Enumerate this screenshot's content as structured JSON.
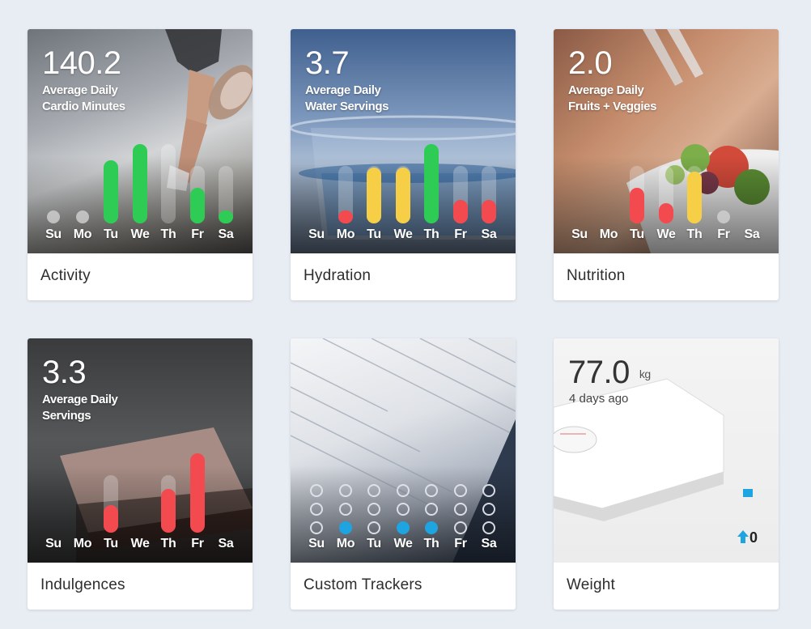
{
  "colors": {
    "green": "#2ecc55",
    "yellow": "#f7cf47",
    "red": "#f24a4e",
    "blue": "#1ea4e0",
    "inactive": "#d9d9d9"
  },
  "days": [
    "Su",
    "Mo",
    "Tu",
    "We",
    "Th",
    "Fr",
    "Sa"
  ],
  "activity": {
    "label": "Activity",
    "value": "140.2",
    "subtitle_line1": "Average Daily",
    "subtitle_line2": "Cardio Minutes",
    "bars": [
      {
        "day": "Su",
        "level": 0,
        "color": "inactive"
      },
      {
        "day": "Mo",
        "level": 0,
        "color": "inactive"
      },
      {
        "day": "Tu",
        "level": 0.8,
        "color": "green"
      },
      {
        "day": "We",
        "level": 1.0,
        "color": "green"
      },
      {
        "day": "Th",
        "level": 0,
        "color": "track"
      },
      {
        "day": "Fr",
        "level": 0.45,
        "color": "green"
      },
      {
        "day": "Sa",
        "level": 0.15,
        "color": "green"
      }
    ]
  },
  "hydration": {
    "label": "Hydration",
    "value": "3.7",
    "subtitle_line1": "Average Daily",
    "subtitle_line2": "Water Servings",
    "bars": [
      {
        "day": "Su",
        "level": 0,
        "color": "none"
      },
      {
        "day": "Mo",
        "level": 0.1,
        "color": "red"
      },
      {
        "day": "Tu",
        "level": 0.7,
        "color": "yellow"
      },
      {
        "day": "We",
        "level": 0.7,
        "color": "yellow"
      },
      {
        "day": "Th",
        "level": 1.0,
        "color": "green"
      },
      {
        "day": "Fr",
        "level": 0.3,
        "color": "red"
      },
      {
        "day": "Sa",
        "level": 0.3,
        "color": "red"
      }
    ]
  },
  "nutrition": {
    "label": "Nutrition",
    "value": "2.0",
    "subtitle_line1": "Average Daily",
    "subtitle_line2": "Fruits + Veggies",
    "bars": [
      {
        "day": "Su",
        "level": 0,
        "color": "none"
      },
      {
        "day": "Mo",
        "level": 0,
        "color": "none"
      },
      {
        "day": "Tu",
        "level": 0.45,
        "color": "red"
      },
      {
        "day": "We",
        "level": 0.25,
        "color": "red"
      },
      {
        "day": "Th",
        "level": 0.65,
        "color": "yellow"
      },
      {
        "day": "Fr",
        "level": 0,
        "color": "inactive"
      },
      {
        "day": "Sa",
        "level": 0,
        "color": "none"
      }
    ]
  },
  "indulgences": {
    "label": "Indulgences",
    "value": "3.3",
    "subtitle_line1": "Average Daily",
    "subtitle_line2": "Servings",
    "bars": [
      {
        "day": "Su",
        "level": 0,
        "color": "none"
      },
      {
        "day": "Mo",
        "level": 0,
        "color": "none"
      },
      {
        "day": "Tu",
        "level": 0.35,
        "color": "red"
      },
      {
        "day": "We",
        "level": 0,
        "color": "none"
      },
      {
        "day": "Th",
        "level": 0.55,
        "color": "red"
      },
      {
        "day": "Fr",
        "level": 1.0,
        "color": "red"
      },
      {
        "day": "Sa",
        "level": 0,
        "color": "none"
      }
    ]
  },
  "custom_trackers": {
    "label": "Custom Trackers",
    "filled_bottom_row": [
      false,
      true,
      false,
      true,
      true,
      false,
      false
    ]
  },
  "weight": {
    "label": "Weight",
    "value": "77.0",
    "unit": "kg",
    "since": "4 days ago",
    "change": "0",
    "change_icon": "arrow-up-icon"
  }
}
